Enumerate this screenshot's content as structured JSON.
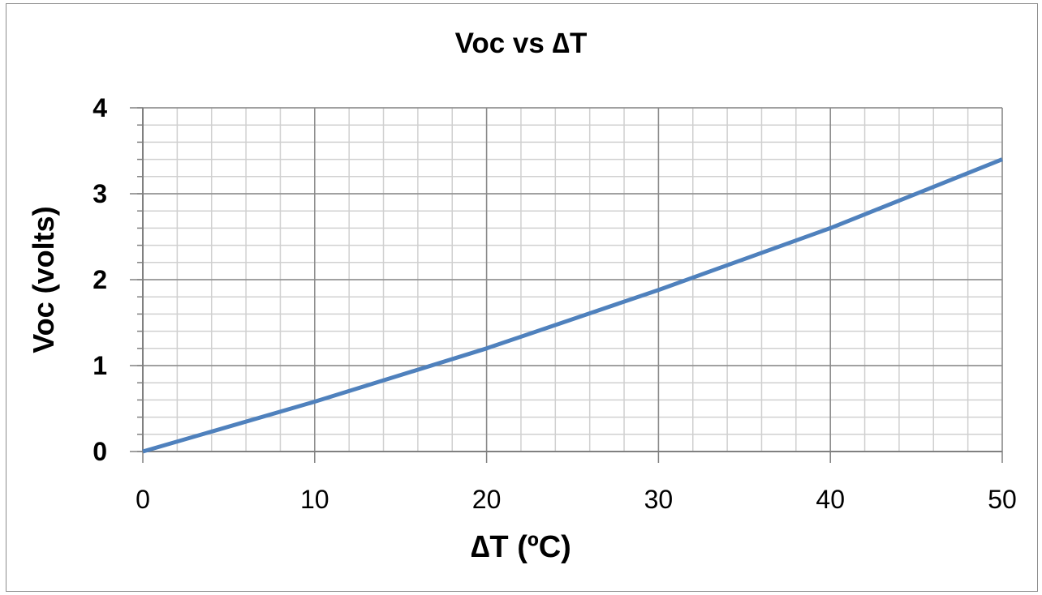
{
  "chart_data": {
    "type": "line",
    "title": "Voc vs ∆T",
    "xlabel": "∆T (ºC)",
    "ylabel": "Voc (volts)",
    "xlim": [
      0,
      50
    ],
    "ylim": [
      0,
      4
    ],
    "x_major_step": 10,
    "x_minor_step": 2,
    "y_major_step": 1,
    "y_minor_step": 0.2,
    "grid": true,
    "legend": "none",
    "x_ticks": [
      "0",
      "10",
      "20",
      "30",
      "40",
      "50"
    ],
    "y_ticks": [
      "0",
      "1",
      "2",
      "3",
      "4"
    ],
    "series": [
      {
        "color": "#4f81bd",
        "x": [
          0,
          10,
          20,
          30,
          40,
          50
        ],
        "y": [
          0,
          0.58,
          1.2,
          1.88,
          2.6,
          3.4
        ]
      }
    ]
  }
}
